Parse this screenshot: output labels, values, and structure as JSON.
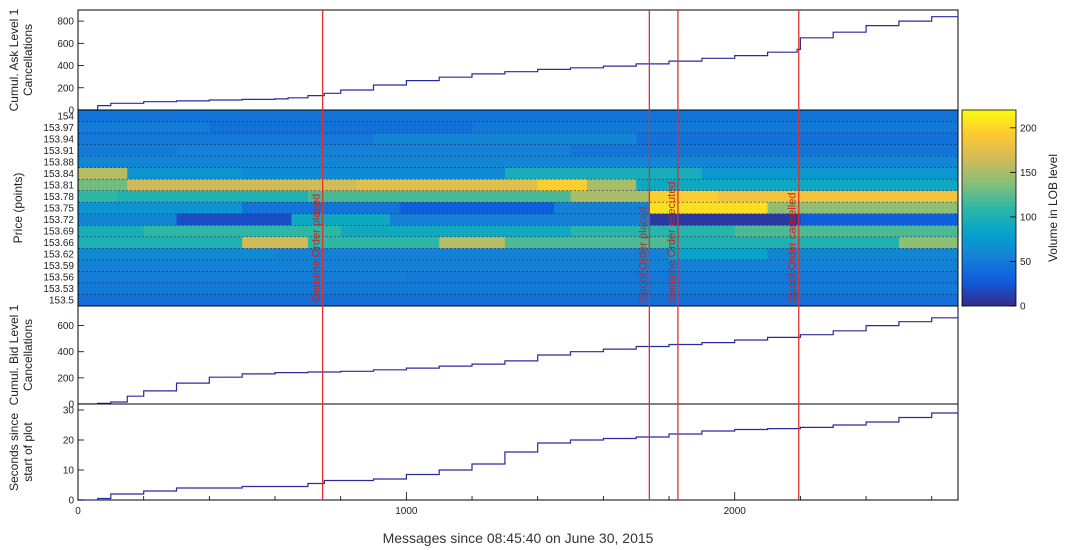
{
  "chart_data": {
    "type": "multi-panel",
    "xlabel": "Messages since 08:45:40 on June 30, 2015",
    "xlim": [
      0,
      2680
    ],
    "x_ticks": [
      "0",
      "1000",
      "2000"
    ],
    "event_lines": [
      {
        "x": 745,
        "label": "Genuine Order placed"
      },
      {
        "x": 1740,
        "label": "Spoof Order placed"
      },
      {
        "x": 1827,
        "label": "Genuine Order executed"
      },
      {
        "x": 2195,
        "label": "Spoof Order cancelled"
      }
    ],
    "panels": [
      {
        "type": "line",
        "ylabel": [
          "Cumul. Ask Level 1",
          "Cancellations"
        ],
        "ylim": [
          0,
          900
        ],
        "y_ticks": [
          "0",
          "200",
          "400",
          "600",
          "800"
        ],
        "series": [
          {
            "x": [
              0,
              60,
              100,
              200,
              300,
              400,
              500,
              600,
              640,
              700,
              750,
              800,
              900,
              1000,
              1100,
              1200,
              1300,
              1400,
              1500,
              1600,
              1700,
              1800,
              1900,
              2000,
              2100,
              2190,
              2200,
              2300,
              2400,
              2500,
              2600,
              2680
            ],
            "y": [
              0,
              40,
              60,
              75,
              82,
              90,
              95,
              100,
              110,
              130,
              150,
              180,
              225,
              265,
              295,
              325,
              345,
              365,
              380,
              395,
              415,
              440,
              465,
              490,
              520,
              545,
              650,
              700,
              760,
              800,
              840,
              860
            ]
          }
        ]
      },
      {
        "type": "heatmap",
        "ylabel": "Price (points)",
        "price_levels": [
          "154",
          "153.97",
          "153.94",
          "153.91",
          "153.88",
          "153.84",
          "153.81",
          "153.78",
          "153.75",
          "153.72",
          "153.69",
          "153.66",
          "153.62",
          "153.59",
          "153.56",
          "153.53",
          "153.5"
        ],
        "colorbar": {
          "label": "Volume in LOB level",
          "range": [
            0,
            220
          ],
          "ticks": [
            "0",
            "50",
            "100",
            "150",
            "200"
          ]
        },
        "rows": [
          {
            "segments": [
              [
                0,
                2680,
                45
              ]
            ]
          },
          {
            "segments": [
              [
                0,
                400,
                52
              ],
              [
                400,
                1200,
                42
              ],
              [
                1200,
                2680,
                48
              ]
            ]
          },
          {
            "segments": [
              [
                0,
                900,
                48
              ],
              [
                900,
                1700,
                58
              ],
              [
                1700,
                2680,
                44
              ]
            ]
          },
          {
            "segments": [
              [
                0,
                300,
                50
              ],
              [
                300,
                1500,
                55
              ],
              [
                1500,
                2680,
                46
              ]
            ]
          },
          {
            "segments": [
              [
                0,
                2680,
                58
              ]
            ]
          },
          {
            "segments": [
              [
                0,
                150,
                155
              ],
              [
                150,
                500,
                70
              ],
              [
                500,
                1300,
                62
              ],
              [
                1300,
                1900,
                95
              ],
              [
                1900,
                2680,
                72
              ]
            ]
          },
          {
            "segments": [
              [
                0,
                150,
                130
              ],
              [
                150,
                850,
                165
              ],
              [
                850,
                1400,
                175
              ],
              [
                1400,
                1550,
                195
              ],
              [
                1550,
                1700,
                150
              ],
              [
                1700,
                2680,
                88
              ]
            ]
          },
          {
            "segments": [
              [
                0,
                120,
                110
              ],
              [
                120,
                700,
                100
              ],
              [
                700,
                1500,
                118
              ],
              [
                1500,
                1740,
                150
              ],
              [
                1740,
                1950,
                195
              ],
              [
                1950,
                2680,
                185
              ]
            ]
          },
          {
            "segments": [
              [
                0,
                500,
                70
              ],
              [
                500,
                980,
                45
              ],
              [
                980,
                1450,
                30
              ],
              [
                1450,
                1740,
                55
              ],
              [
                1740,
                2100,
                205
              ],
              [
                2100,
                2680,
                140
              ]
            ]
          },
          {
            "segments": [
              [
                0,
                300,
                60
              ],
              [
                300,
                650,
                20
              ],
              [
                650,
                950,
                88
              ],
              [
                950,
                1740,
                55
              ],
              [
                1740,
                2200,
                8
              ],
              [
                2200,
                2680,
                30
              ]
            ]
          },
          {
            "segments": [
              [
                0,
                200,
                95
              ],
              [
                200,
                800,
                110
              ],
              [
                800,
                1500,
                90
              ],
              [
                1500,
                2000,
                105
              ],
              [
                2000,
                2680,
                120
              ]
            ]
          },
          {
            "segments": [
              [
                0,
                500,
                100
              ],
              [
                500,
                700,
                165
              ],
              [
                700,
                1100,
                110
              ],
              [
                1100,
                1300,
                155
              ],
              [
                1300,
                1800,
                120
              ],
              [
                1800,
                2500,
                100
              ],
              [
                2500,
                2680,
                140
              ]
            ]
          },
          {
            "segments": [
              [
                0,
                600,
                62
              ],
              [
                600,
                1800,
                55
              ],
              [
                1800,
                2100,
                82
              ],
              [
                2100,
                2680,
                60
              ]
            ]
          },
          {
            "segments": [
              [
                0,
                2680,
                55
              ]
            ]
          },
          {
            "segments": [
              [
                0,
                1000,
                52
              ],
              [
                1000,
                2680,
                48
              ]
            ]
          },
          {
            "segments": [
              [
                0,
                2680,
                50
              ]
            ]
          },
          {
            "segments": [
              [
                0,
                2680,
                42
              ]
            ]
          }
        ]
      },
      {
        "type": "line",
        "ylabel": [
          "Cumul. Bid Level 1",
          "Cancellations"
        ],
        "ylim": [
          0,
          750
        ],
        "y_ticks": [
          "0",
          "200",
          "400",
          "600"
        ],
        "series": [
          {
            "x": [
              0,
              60,
              100,
              150,
              200,
              300,
              400,
              500,
              600,
              700,
              800,
              900,
              1000,
              1100,
              1200,
              1300,
              1400,
              1500,
              1600,
              1700,
              1800,
              1900,
              2000,
              2100,
              2200,
              2300,
              2400,
              2500,
              2600,
              2680
            ],
            "y": [
              0,
              5,
              15,
              60,
              100,
              160,
              205,
              230,
              240,
              245,
              250,
              262,
              275,
              290,
              305,
              330,
              375,
              400,
              420,
              440,
              455,
              470,
              490,
              510,
              530,
              560,
              600,
              630,
              660,
              700
            ]
          }
        ]
      },
      {
        "type": "line",
        "ylabel": [
          "Seconds since",
          "start of plot"
        ],
        "ylim": [
          0,
          32
        ],
        "y_ticks": [
          "0",
          "10",
          "20",
          "30"
        ],
        "series": [
          {
            "x": [
              0,
              60,
              100,
              200,
              300,
              500,
              700,
              750,
              900,
              1000,
              1100,
              1200,
              1300,
              1400,
              1500,
              1600,
              1700,
              1800,
              1900,
              2000,
              2100,
              2200,
              2300,
              2400,
              2500,
              2600,
              2680
            ],
            "y": [
              0,
              0.5,
              2,
              3,
              4,
              4.5,
              5.5,
              6.5,
              7,
              8.5,
              10,
              12,
              16,
              19,
              20,
              20.5,
              21,
              22,
              23,
              23.5,
              23.8,
              24.2,
              25,
              26,
              27.5,
              29,
              30
            ]
          }
        ]
      }
    ]
  }
}
